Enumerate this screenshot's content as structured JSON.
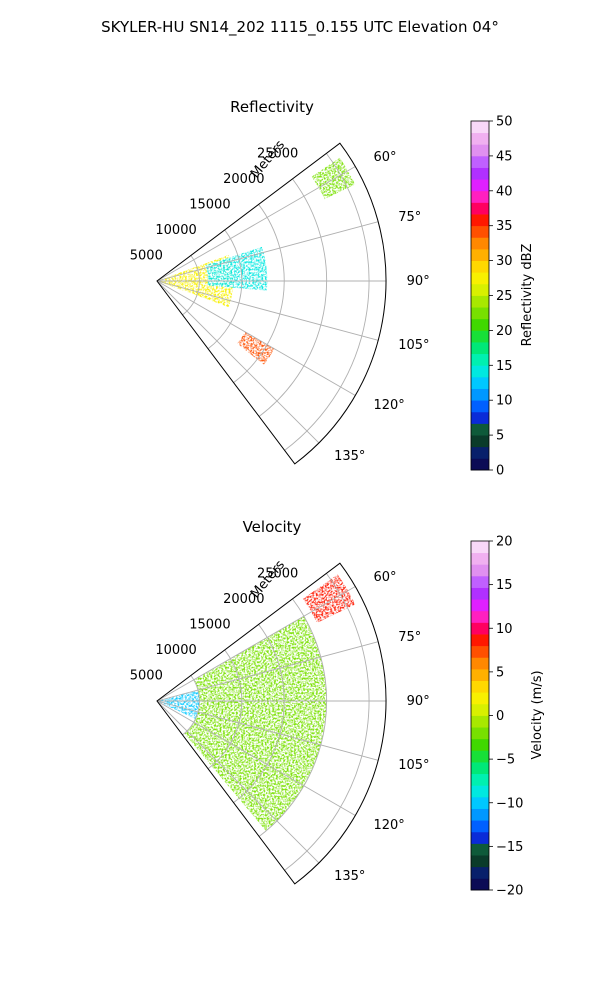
{
  "suptitle": "SKYLER-HU  SN14_202  1115_0.155 UTC Elevation 04°",
  "chart_data": [
    {
      "type": "heatmap",
      "subtype": "polar-sector-ppi",
      "title": "Reflectivity",
      "radial_label": "Meters",
      "r_ticks": [
        "5000",
        "10000",
        "15000",
        "20000",
        "25000"
      ],
      "r_values": [
        5000,
        10000,
        15000,
        20000,
        25000
      ],
      "rlim": [
        0,
        27000
      ],
      "theta_ticks": [
        "60°",
        "75°",
        "90°",
        "105°",
        "120°",
        "135°"
      ],
      "theta_values": [
        60,
        75,
        90,
        105,
        120,
        135
      ],
      "theta_range": [
        53,
        143
      ],
      "grid": true,
      "colorbar": {
        "label": "Reflectivity dBZ",
        "ticks": [
          "0",
          "5",
          "10",
          "15",
          "20",
          "25",
          "30",
          "35",
          "40",
          "45",
          "50"
        ],
        "vmin": 0,
        "vmax": 50,
        "colors": [
          "#0b0b55",
          "#08206b",
          "#0a3b2a",
          "#0e5a3a",
          "#0a2bd8",
          "#0060ff",
          "#0098ff",
          "#00c8ff",
          "#00e8e0",
          "#00f0b0",
          "#00e878",
          "#18e038",
          "#40d800",
          "#78e000",
          "#a8e800",
          "#d8f000",
          "#f8f000",
          "#ffd800",
          "#ffb000",
          "#ff8800",
          "#ff5000",
          "#ff1800",
          "#ff0060",
          "#ff20c0",
          "#e020ff",
          "#b030ff",
          "#c060ff",
          "#e090f0",
          "#f0b0f0",
          "#f8d8f8"
        ],
        "description": "Color scale from dark navy at 0 dBZ through blue, cyan, green, yellow, orange, red near 35 dBZ to magenta, purple and pale pink at 50 dBZ"
      },
      "features": [
        {
          "name": "near-range yellow-orange echoes",
          "theta_range": [
            70,
            110
          ],
          "r_range": [
            0,
            9000
          ],
          "value_range": [
            22,
            32
          ]
        },
        {
          "name": "cyan core",
          "theta_range": [
            72,
            95
          ],
          "r_range": [
            6000,
            13000
          ],
          "value_range": [
            12,
            16
          ]
        },
        {
          "name": "red cell",
          "theta_range": [
            120,
            128
          ],
          "r_range": [
            12000,
            16000
          ],
          "value_range": [
            30,
            38
          ]
        },
        {
          "name": "far echo near 60°",
          "theta_range": [
            56,
            64
          ],
          "r_range": [
            22000,
            26000
          ],
          "value_range": [
            18,
            26
          ]
        }
      ]
    },
    {
      "type": "heatmap",
      "subtype": "polar-sector-ppi",
      "title": "Velocity",
      "radial_label": "Meters",
      "r_ticks": [
        "5000",
        "10000",
        "15000",
        "20000",
        "25000"
      ],
      "r_values": [
        5000,
        10000,
        15000,
        20000,
        25000
      ],
      "rlim": [
        0,
        27000
      ],
      "theta_ticks": [
        "60°",
        "75°",
        "90°",
        "105°",
        "120°",
        "135°"
      ],
      "theta_values": [
        60,
        75,
        90,
        105,
        120,
        135
      ],
      "theta_range": [
        53,
        143
      ],
      "grid": true,
      "colorbar": {
        "label": "Velocity (m/s)",
        "ticks": [
          "−20",
          "−15",
          "−10",
          "−5",
          "0",
          "5",
          "10",
          "15",
          "20"
        ],
        "vmin": -20,
        "vmax": 20,
        "colors": [
          "#0b0b55",
          "#08206b",
          "#0a3b2a",
          "#0e5a3a",
          "#0a2bd8",
          "#0060ff",
          "#0098ff",
          "#00c8ff",
          "#00e8e0",
          "#00f0b0",
          "#00e878",
          "#18e038",
          "#40d800",
          "#78e000",
          "#a8e800",
          "#d8f000",
          "#f8f000",
          "#ffd800",
          "#ffb000",
          "#ff8800",
          "#ff5000",
          "#ff1800",
          "#ff0060",
          "#ff20c0",
          "#e020ff",
          "#b030ff",
          "#c060ff",
          "#e090f0",
          "#f0b0f0",
          "#f8d8f8"
        ],
        "description": "Color scale from dark navy at -20 m/s through blue, cyan, green, yellow at 0, orange, red near 10 m/s to magenta, purple and pale pink at 20 m/s"
      },
      "features": [
        {
          "name": "near-range cyan-green",
          "theta_range": [
            75,
            115
          ],
          "r_range": [
            0,
            5000
          ],
          "value_range": [
            -12,
            -7
          ]
        },
        {
          "name": "green to yellow band",
          "theta_range": [
            60,
            140
          ],
          "r_range": [
            5000,
            20000
          ],
          "value_range": [
            -5,
            1
          ]
        },
        {
          "name": "orange-red far echo near 60°",
          "theta_range": [
            55,
            64
          ],
          "r_range": [
            21000,
            26000
          ],
          "value_range": [
            6,
            11
          ]
        }
      ]
    }
  ]
}
